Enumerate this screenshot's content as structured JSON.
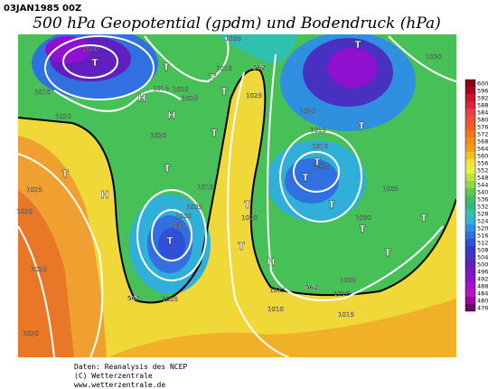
{
  "header": {
    "date": "03JAN1985 00Z",
    "title": "500 hPa Geopotential (gpdm) und Bodendruck (hPa)"
  },
  "map": {
    "isobar_labels": [
      "1000",
      "1005",
      "1010",
      "1010",
      "1015",
      "1020",
      "1025",
      "1020",
      "1020",
      "562",
      "1025",
      "1030",
      "1020",
      "1015",
      "1010",
      "1005",
      "1005",
      "1000",
      "1010",
      "1005",
      "1000",
      "995",
      "1020",
      "1025",
      "1020",
      "1025",
      "1020",
      "1015",
      "1010",
      "1010",
      "1005",
      "1015",
      "562",
      "562",
      "1005"
    ],
    "pressure_centers": [
      "T",
      "T",
      "H",
      "H",
      "T",
      "T",
      "T",
      "T",
      "T",
      "H",
      "T",
      "T",
      "T",
      "T",
      "T",
      "T",
      "T",
      "T",
      "T",
      "T",
      "T",
      "H"
    ]
  },
  "colorbar": {
    "labels": [
      600,
      596,
      592,
      588,
      584,
      580,
      576,
      572,
      568,
      564,
      560,
      556,
      552,
      548,
      544,
      540,
      536,
      532,
      528,
      524,
      520,
      516,
      512,
      508,
      504,
      500,
      496,
      492,
      488,
      484,
      480,
      476
    ],
    "colors": [
      "#8b0010",
      "#b00020",
      "#d01030",
      "#e02040",
      "#e84040",
      "#f05030",
      "#f06020",
      "#f07818",
      "#f08c18",
      "#f0a020",
      "#f0c020",
      "#f0e040",
      "#e8f040",
      "#c0e040",
      "#90d840",
      "#60c850",
      "#40c060",
      "#30b880",
      "#30c0b0",
      "#30b0d8",
      "#3090e0",
      "#3070e0",
      "#3050d8",
      "#3838c8",
      "#4830c0",
      "#6020c0",
      "#7818c8",
      "#9010d0",
      "#a810d0",
      "#c010c0",
      "#a000a0",
      "#700070"
    ]
  },
  "footer": {
    "lines": [
      "Daten: Reanalysis des NCEP",
      "(C) Wetterzentrale",
      "www.wetterzentrale.de"
    ]
  }
}
